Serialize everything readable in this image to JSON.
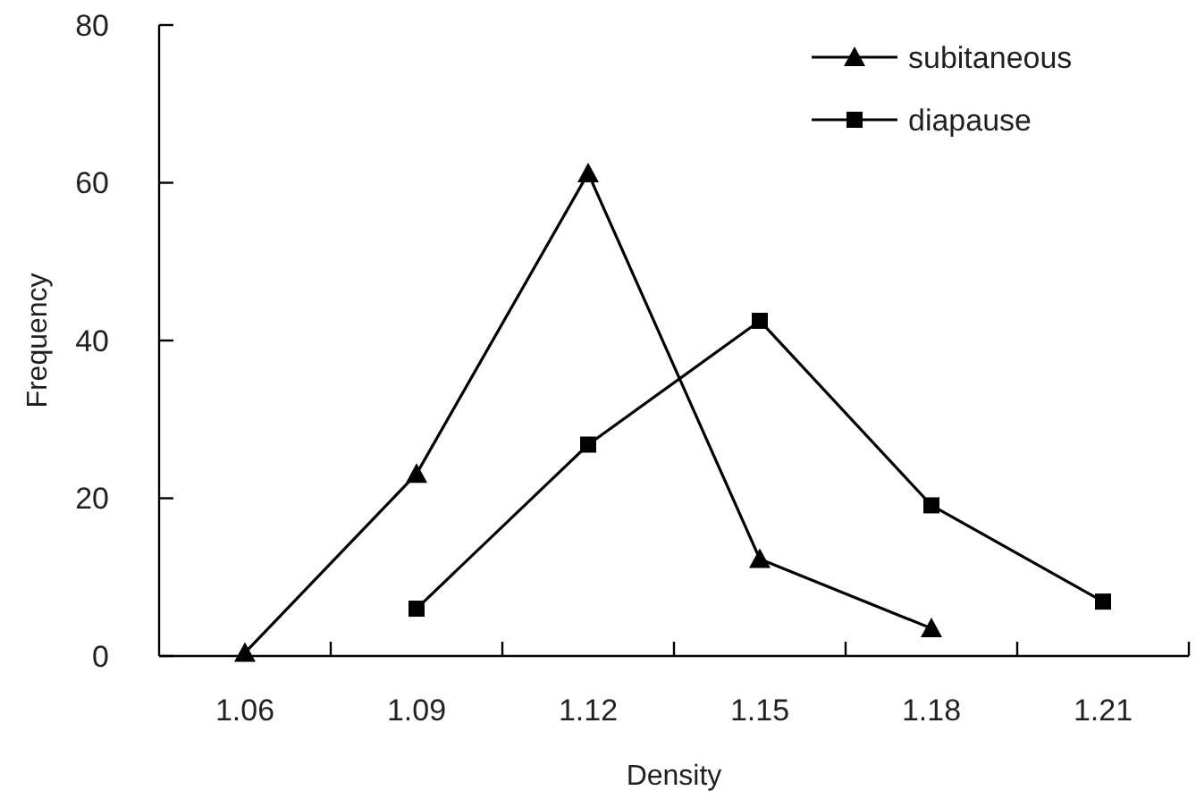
{
  "chart_data": {
    "type": "line",
    "xlabel": "Density",
    "ylabel": "Frequency",
    "categories": [
      "1.06",
      "1.09",
      "1.12",
      "1.15",
      "1.18",
      "1.21"
    ],
    "series": [
      {
        "name": "subitaneous",
        "color": "#000000",
        "marker": "triangle",
        "values": [
          0.4,
          23.1,
          61.2,
          12.3,
          3.5,
          null
        ]
      },
      {
        "name": "diapause",
        "color": "#000000",
        "marker": "square",
        "values": [
          null,
          6,
          26.8,
          42.5,
          19.1,
          6.9
        ]
      }
    ],
    "ylim": [
      0,
      80
    ],
    "yticks": [
      0,
      20,
      40,
      60,
      80
    ],
    "legend": "top right",
    "grid": false
  }
}
